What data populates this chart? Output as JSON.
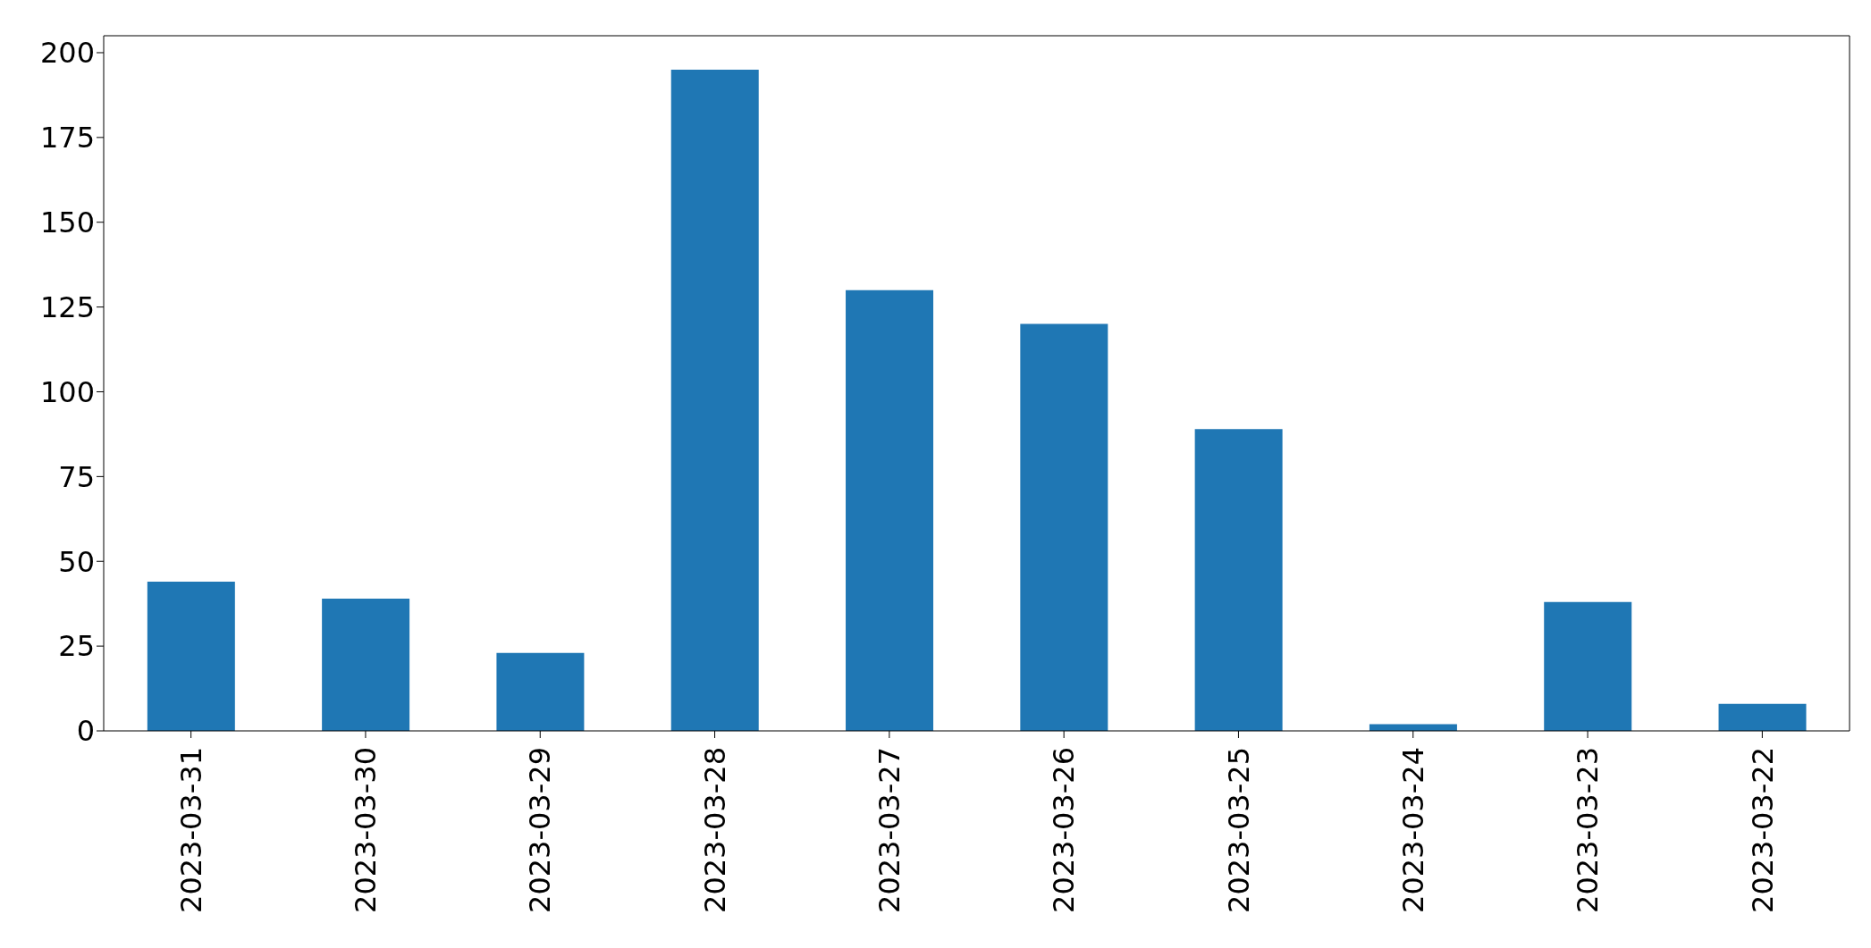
{
  "chart_data": {
    "type": "bar",
    "categories": [
      "2023-03-31",
      "2023-03-30",
      "2023-03-29",
      "2023-03-28",
      "2023-03-27",
      "2023-03-26",
      "2023-03-25",
      "2023-03-24",
      "2023-03-23",
      "2023-03-22"
    ],
    "values": [
      44,
      39,
      23,
      195,
      130,
      120,
      89,
      2,
      38,
      8
    ],
    "color": "#1f77b4",
    "ylim": [
      0,
      205
    ],
    "yticks": [
      0,
      25,
      50,
      75,
      100,
      125,
      150,
      175,
      200
    ],
    "grid": false
  }
}
